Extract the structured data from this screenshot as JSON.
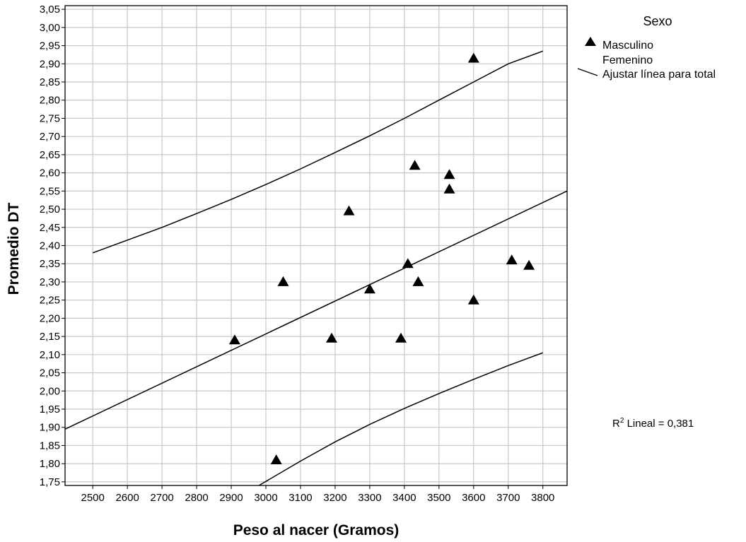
{
  "chart_data": {
    "type": "scatter",
    "xlabel": "Peso al nacer (Gramos)",
    "ylabel": "Promedio DT",
    "xlim": [
      2420,
      3870
    ],
    "ylim": [
      1.74,
      3.06
    ],
    "x_ticks": [
      2500,
      2600,
      2700,
      2800,
      2900,
      3000,
      3100,
      3200,
      3300,
      3400,
      3500,
      3600,
      3700,
      3800
    ],
    "x_tick_labels": [
      "2500",
      "2600",
      "2700",
      "2800",
      "2900",
      "3000",
      "3100",
      "3200",
      "3300",
      "3400",
      "3500",
      "3600",
      "3700",
      "3800"
    ],
    "y_ticks": [
      1.75,
      1.8,
      1.85,
      1.9,
      1.95,
      2.0,
      2.05,
      2.1,
      2.15,
      2.2,
      2.25,
      2.3,
      2.35,
      2.4,
      2.45,
      2.5,
      2.55,
      2.6,
      2.65,
      2.7,
      2.75,
      2.8,
      2.85,
      2.9,
      2.95,
      3.0,
      3.05
    ],
    "y_tick_labels": [
      "1,75",
      "1,80",
      "1,85",
      "1,90",
      "1,95",
      "2,00",
      "2,05",
      "2,10",
      "2,15",
      "2,20",
      "2,25",
      "2,30",
      "2,35",
      "2,40",
      "2,45",
      "2,50",
      "2,55",
      "2,60",
      "2,65",
      "2,70",
      "2,75",
      "2,80",
      "2,85",
      "2,90",
      "2,95",
      "3,00",
      "3,05"
    ],
    "grid": true,
    "series": [
      {
        "name": "Masculino",
        "marker": "triangle",
        "color": "#000000",
        "points": [
          [
            2910,
            2.14
          ],
          [
            3030,
            1.81
          ],
          [
            3050,
            2.3
          ],
          [
            3190,
            2.145
          ],
          [
            3240,
            2.495
          ],
          [
            3300,
            2.28
          ],
          [
            3390,
            2.145
          ],
          [
            3410,
            2.35
          ],
          [
            3430,
            2.62
          ],
          [
            3440,
            2.3
          ],
          [
            3530,
            2.595
          ],
          [
            3530,
            2.555
          ],
          [
            3600,
            2.915
          ],
          [
            3600,
            2.25
          ],
          [
            3710,
            2.36
          ],
          [
            3760,
            2.345
          ]
        ]
      },
      {
        "name": "Femenino",
        "marker": "none",
        "color": "#000000",
        "points": []
      }
    ],
    "fit_line": {
      "name": "Ajustar línea para total",
      "x": [
        2420,
        3870
      ],
      "y": [
        1.895,
        2.55
      ]
    },
    "upper_band": {
      "x": [
        2500,
        2600,
        2700,
        2800,
        2900,
        3000,
        3100,
        3200,
        3300,
        3400,
        3500,
        3600,
        3700,
        3800
      ],
      "y": [
        2.38,
        2.415,
        2.45,
        2.488,
        2.527,
        2.568,
        2.611,
        2.656,
        2.702,
        2.75,
        2.8,
        2.85,
        2.9,
        2.935
      ]
    },
    "lower_band": {
      "x": [
        2980,
        3100,
        3200,
        3300,
        3400,
        3500,
        3600,
        3700,
        3800
      ],
      "y": [
        1.74,
        1.807,
        1.86,
        1.908,
        1.952,
        1.993,
        2.032,
        2.07,
        2.105
      ]
    },
    "legend_title": "Sexo",
    "legend_placement": "top-right",
    "annotation": "R² Lineal = 0,381",
    "annotation_prefix": "R",
    "annotation_sup": "2",
    "annotation_rest": " Lineal = 0,381"
  }
}
